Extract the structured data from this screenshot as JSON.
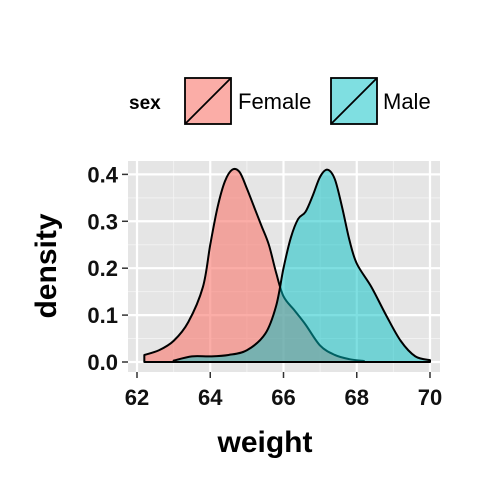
{
  "chart_data": {
    "type": "area",
    "xlabel": "weight",
    "ylabel": "density",
    "xlim": [
      62,
      70
    ],
    "ylim": [
      0,
      0.42
    ],
    "x_ticks": [
      62,
      64,
      66,
      68,
      70
    ],
    "x_tick_labels": [
      "62",
      "64",
      "66",
      "68",
      "70"
    ],
    "y_ticks": [
      0.0,
      0.1,
      0.2,
      0.3,
      0.4
    ],
    "y_tick_labels": [
      "0.0",
      "0.1",
      "0.2",
      "0.3",
      "0.4"
    ],
    "grid": true,
    "legend": {
      "title": "sex",
      "position": "top",
      "entries": [
        "Female",
        "Male"
      ]
    },
    "series": [
      {
        "name": "Female",
        "color": "#F8766D",
        "x": [
          62.2,
          62.6,
          63.0,
          63.4,
          63.8,
          64.0,
          64.2,
          64.4,
          64.6,
          64.8,
          65.0,
          65.2,
          65.4,
          65.6,
          65.8,
          66.0,
          66.3,
          66.6,
          67.0,
          67.4,
          67.8,
          68.2
        ],
        "values": [
          0.015,
          0.025,
          0.045,
          0.085,
          0.16,
          0.25,
          0.33,
          0.385,
          0.41,
          0.405,
          0.37,
          0.33,
          0.29,
          0.25,
          0.19,
          0.14,
          0.11,
          0.08,
          0.035,
          0.015,
          0.006,
          0.002
        ]
      },
      {
        "name": "Male",
        "color": "#00BFC4",
        "x": [
          63.0,
          63.5,
          64.0,
          64.5,
          65.0,
          65.5,
          65.8,
          66.0,
          66.2,
          66.4,
          66.6,
          66.8,
          67.0,
          67.2,
          67.4,
          67.6,
          67.8,
          68.0,
          68.4,
          68.8,
          69.2,
          69.6,
          70.0
        ],
        "values": [
          0.003,
          0.012,
          0.012,
          0.015,
          0.025,
          0.06,
          0.12,
          0.2,
          0.265,
          0.305,
          0.32,
          0.355,
          0.395,
          0.41,
          0.39,
          0.33,
          0.26,
          0.21,
          0.16,
          0.1,
          0.045,
          0.012,
          0.004
        ]
      }
    ]
  }
}
